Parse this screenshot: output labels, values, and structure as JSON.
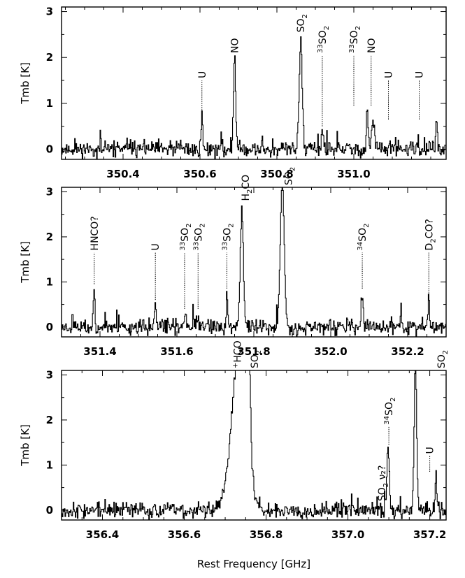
{
  "chart_data": [
    {
      "type": "line",
      "xlabel": "",
      "ylabel": "Tmb [K]",
      "xlim": [
        350.24,
        351.24
      ],
      "ylim": [
        -0.22,
        3.1
      ],
      "xticks": [
        350.4,
        350.6,
        350.8,
        351.0
      ],
      "xtick_labels": [
        "350.4",
        "350.6",
        "350.8",
        "351.0"
      ],
      "yticks": [
        0,
        1,
        2,
        3
      ],
      "ytick_labels": [
        "0",
        "1",
        "2",
        "3"
      ],
      "noise_seed": 11,
      "peaks": [
        {
          "x": 350.605,
          "h": 0.75,
          "w": 0.002
        },
        {
          "x": 350.69,
          "h": 1.95,
          "w": 0.003
        },
        {
          "x": 350.862,
          "h": 2.4,
          "w": 0.004
        },
        {
          "x": 350.918,
          "h": 0.4,
          "w": 0.002
        },
        {
          "x": 351.035,
          "h": 0.9,
          "w": 0.002
        },
        {
          "x": 351.05,
          "h": 0.6,
          "w": 0.004
        },
        {
          "x": 351.215,
          "h": 0.55,
          "w": 0.002
        }
      ],
      "lines": [
        {
          "x": 350.605,
          "label": "U",
          "sub": "",
          "sup": "",
          "rest": "",
          "y0": 0.85,
          "y1": 1.5
        },
        {
          "x": 350.69,
          "label": "NO",
          "sub": "",
          "sup": "",
          "rest": "",
          "y0": 2.05,
          "y1": 2.05
        },
        {
          "x": 350.862,
          "label": "SO",
          "sub": "2",
          "sup": "",
          "rest": "",
          "y0": 2.5,
          "y1": 2.5
        },
        {
          "x": 350.918,
          "label": "SO",
          "sub": "2",
          "sup": "33",
          "rest": "",
          "y0": 0.5,
          "y1": 2.05
        },
        {
          "x": 351.0,
          "label": "SO",
          "sub": "2",
          "sup": "33",
          "rest": "",
          "y0": 0.95,
          "y1": 2.05
        },
        {
          "x": 351.045,
          "label": "NO",
          "sub": "",
          "sup": "",
          "rest": "",
          "y0": 0.95,
          "y1": 2.05
        },
        {
          "x": 351.09,
          "label": "U",
          "sub": "",
          "sup": "",
          "rest": "",
          "y0": 0.65,
          "y1": 1.5
        },
        {
          "x": 351.17,
          "label": "U",
          "sub": "",
          "sup": "",
          "rest": "",
          "y0": 0.65,
          "y1": 1.5
        }
      ]
    },
    {
      "type": "line",
      "xlabel": "",
      "ylabel": "Tmb [K]",
      "xlim": [
        351.3,
        352.3
      ],
      "ylim": [
        -0.22,
        3.1
      ],
      "xticks": [
        351.4,
        351.6,
        351.8,
        352.0,
        352.2
      ],
      "xtick_labels": [
        "351.4",
        "351.6",
        "351.8",
        "352.0",
        "352.2"
      ],
      "yticks": [
        0,
        1,
        2,
        3
      ],
      "ytick_labels": [
        "0",
        "1",
        "2",
        "3"
      ],
      "noise_seed": 23,
      "peaks": [
        {
          "x": 351.385,
          "h": 0.85,
          "w": 0.002
        },
        {
          "x": 351.544,
          "h": 0.5,
          "w": 0.002
        },
        {
          "x": 351.62,
          "h": 0.3,
          "w": 0.002
        },
        {
          "x": 351.73,
          "h": 0.75,
          "w": 0.002
        },
        {
          "x": 351.769,
          "h": 2.65,
          "w": 0.004
        },
        {
          "x": 351.874,
          "h": 3.2,
          "w": 0.005
        },
        {
          "x": 352.082,
          "h": 0.75,
          "w": 0.002
        },
        {
          "x": 352.255,
          "h": 0.6,
          "w": 0.002
        }
      ],
      "lines": [
        {
          "x": 351.385,
          "label": "HNCO?",
          "sub": "",
          "sup": "",
          "rest": "",
          "y0": 0.95,
          "y1": 1.65
        },
        {
          "x": 351.544,
          "label": "U",
          "sub": "",
          "sup": "",
          "rest": "",
          "y0": 0.6,
          "y1": 1.65
        },
        {
          "x": 351.62,
          "label": "SO",
          "sub": "2",
          "sup": "33",
          "rest": "",
          "y0": 0.4,
          "y1": 1.65
        },
        {
          "x": 351.655,
          "label": "SO",
          "sub": "2",
          "sup": "33",
          "rest": "",
          "y0": 0.4,
          "y1": 1.65
        },
        {
          "x": 351.73,
          "label": "SO",
          "sub": "2",
          "sup": "33",
          "rest": "",
          "y0": 0.85,
          "y1": 1.65
        },
        {
          "x": 351.778,
          "label": "H",
          "sub": "2",
          "sup": "",
          "rest": "CO",
          "y0": 2.75,
          "y1": 2.75
        },
        {
          "x": 351.89,
          "label": "SO",
          "sub": "2",
          "sup": "",
          "rest": "",
          "y0": 3.1,
          "y1": 3.1
        },
        {
          "x": 352.082,
          "label": "SO",
          "sub": "2",
          "sup": "34",
          "rest": "",
          "y0": 0.85,
          "y1": 1.65
        },
        {
          "x": 352.255,
          "label": "D",
          "sub": "2",
          "sup": "",
          "rest": "CO?",
          "y0": 0.7,
          "y1": 1.65
        }
      ]
    },
    {
      "type": "line",
      "xlabel": "Rest Frequency [GHz]",
      "ylabel": "Tmb [K]",
      "xlim": [
        356.3,
        357.24
      ],
      "ylim": [
        -0.22,
        3.1
      ],
      "xticks": [
        356.4,
        356.6,
        356.8,
        357.0,
        357.2
      ],
      "xtick_labels": [
        "356.4",
        "356.6",
        "356.8",
        "357.0",
        "357.2"
      ],
      "yticks": [
        0,
        1,
        2,
        3
      ],
      "ytick_labels": [
        "0",
        "1",
        "2",
        "3"
      ],
      "noise_seed": 37,
      "peaks": [
        {
          "x": 356.734,
          "h": 3.5,
          "w": 0.018
        },
        {
          "x": 356.755,
          "h": 3.4,
          "w": 0.005
        },
        {
          "x": 357.098,
          "h": 1.35,
          "w": 0.003
        },
        {
          "x": 357.165,
          "h": 3.4,
          "w": 0.003
        },
        {
          "x": 357.215,
          "h": 0.75,
          "w": 0.002
        }
      ],
      "lines": [
        {
          "x": 356.73,
          "label": "HCO",
          "sub": "",
          "sup": "+",
          "rest": "",
          "y0": 3.1,
          "y1": 3.1
        },
        {
          "x": 356.772,
          "label": "SO",
          "sub": "2",
          "sup": "",
          "rest": "",
          "y0": 3.1,
          "y1": 3.1
        },
        {
          "x": 357.083,
          "label": "SO",
          "sub": "2",
          "sup": "",
          "rest": " ν₂?",
          "y0": 0.15,
          "y1": 0.15
        },
        {
          "x": 357.1,
          "label": "SO",
          "sub": "2",
          "sup": "34",
          "rest": "",
          "y0": 1.45,
          "y1": 1.85
        },
        {
          "x": 357.2,
          "label": "U",
          "sub": "",
          "sup": "",
          "rest": "",
          "y0": 0.85,
          "y1": 1.2
        },
        {
          "x": 357.228,
          "label": "SO",
          "sub": "2",
          "sup": "",
          "rest": "",
          "y0": 3.1,
          "y1": 3.1
        }
      ]
    }
  ]
}
